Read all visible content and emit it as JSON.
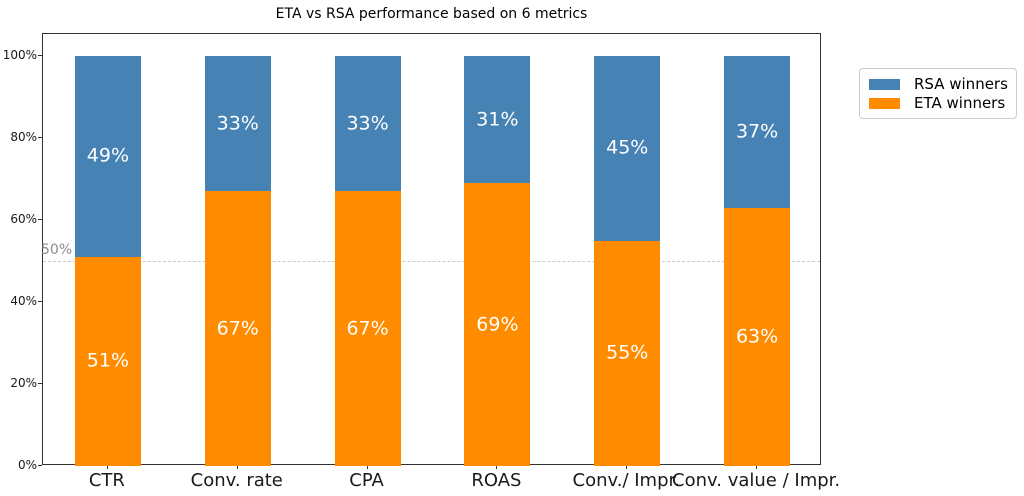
{
  "figure": {
    "title": "ETA vs RSA performance based on 6 metrics"
  },
  "legend": {
    "position": "outside-upper-right",
    "items": [
      {
        "label": "RSA winners",
        "color": "#4682B4"
      },
      {
        "label": "ETA winners",
        "color": "#FF8C00"
      }
    ]
  },
  "chart_data": {
    "type": "bar",
    "stacked": true,
    "title": "ETA vs RSA performance based on 6 metrics",
    "categories": [
      "CTR",
      "Conv. rate",
      "CPA",
      "ROAS",
      "Conv./ Impr.",
      "Conv. value / Impr."
    ],
    "series": [
      {
        "name": "ETA winners",
        "color": "#FF8C00",
        "values": [
          51,
          67,
          67,
          69,
          55,
          63
        ]
      },
      {
        "name": "RSA winners",
        "color": "#4682B4",
        "values": [
          49,
          33,
          33,
          31,
          45,
          37
        ]
      }
    ],
    "value_label_format": "{value}%",
    "value_labels_position": "centered inside each segment, white text",
    "xlabel": "",
    "ylabel": "",
    "ylim": [
      0,
      105
    ],
    "yticks": [
      {
        "value": 0,
        "label": "0%"
      },
      {
        "value": 20,
        "label": "20%"
      },
      {
        "value": 40,
        "label": "40%"
      },
      {
        "value": 60,
        "label": "60%"
      },
      {
        "value": 80,
        "label": "80%"
      },
      {
        "value": 100,
        "label": "100%"
      }
    ],
    "grid": false,
    "reference_line": {
      "y": 50,
      "label": "50%",
      "style": "dashed",
      "color": "#c9c9c9",
      "label_color": "#8c8c8c"
    },
    "legend_entries": [
      "RSA winners",
      "ETA winners"
    ],
    "legend_position": "upper right, outside plot"
  }
}
